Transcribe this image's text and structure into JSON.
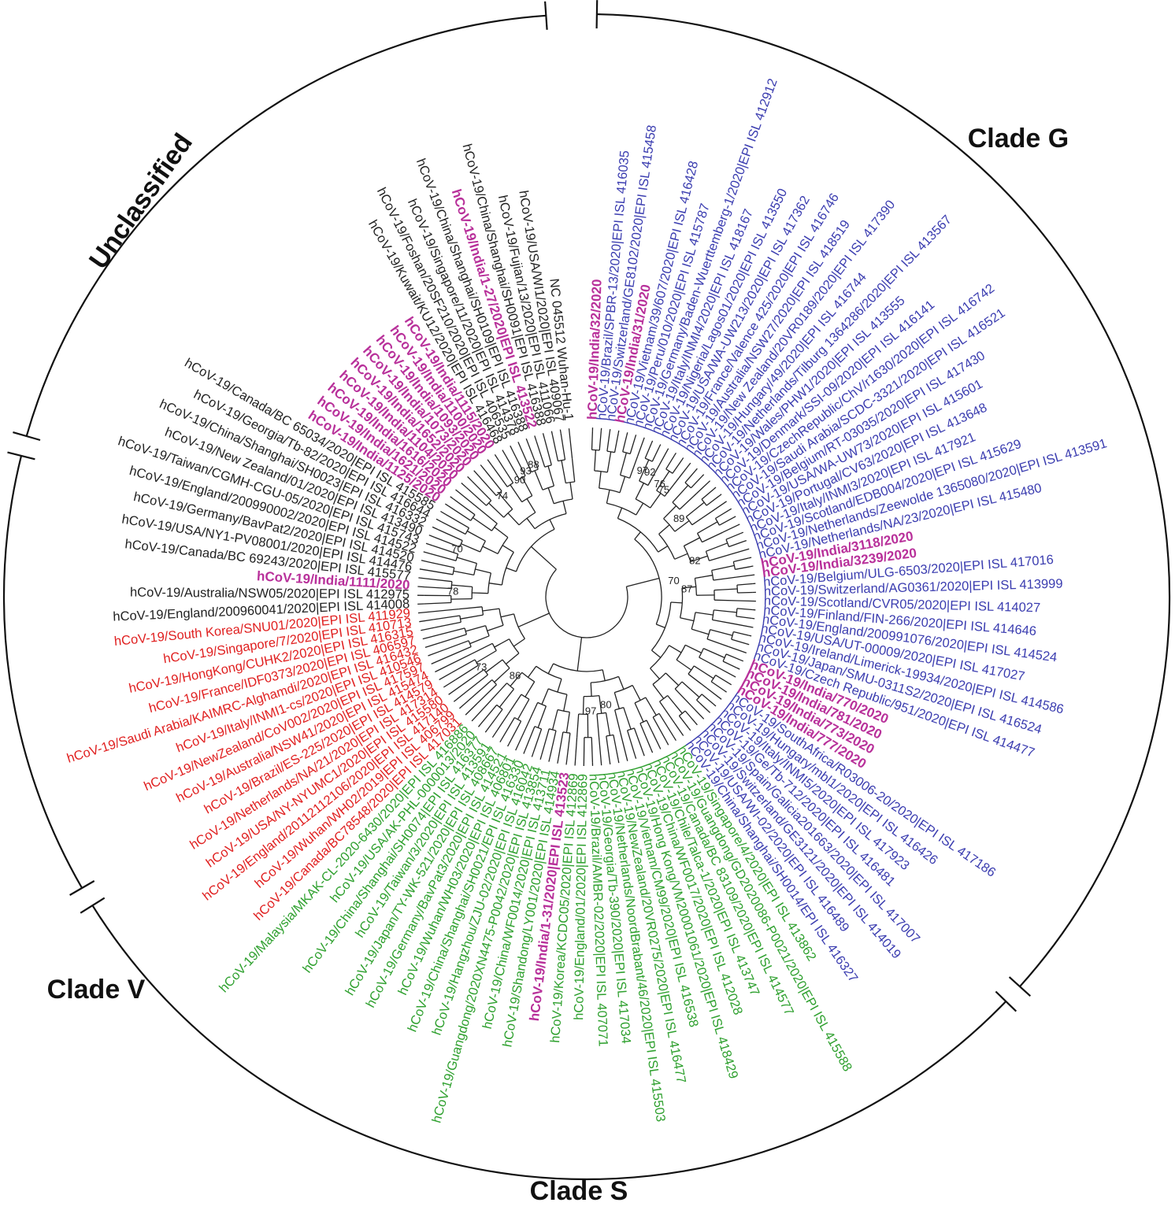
{
  "clades": [
    {
      "label": "Unclassified",
      "color": "#222222"
    },
    {
      "label": "Clade G",
      "color": "#3b3db0"
    },
    {
      "label": "Clade S",
      "color": "#2ea02e"
    },
    {
      "label": "Clade V",
      "color": "#e02020"
    }
  ],
  "india_color": "#b8309a",
  "bootstrap_values": [
    "97",
    "92",
    "76",
    "75",
    "89",
    "82",
    "70",
    "87",
    "80",
    "97",
    "86",
    "73",
    "78",
    "70",
    "74",
    "90",
    "93",
    "88"
  ],
  "leaves": [
    {
      "label": "hCoV-19/India/32/2020",
      "group": "india"
    },
    {
      "label": "hCoV-19/Brazil/SPBR-13/2020|EPI ISL 416035",
      "group": "G"
    },
    {
      "label": "hCoV-19/Switzerland/GE8102/2020|EPI ISL 415458",
      "group": "G"
    },
    {
      "label": "hCoV-19/India/31/2020",
      "group": "india"
    },
    {
      "label": "hCoV-19/Vietnam/39/607/2020|EPI ISL 416428",
      "group": "G"
    },
    {
      "label": "hCoV-19/Peru/010/2020|EPI ISL 415787",
      "group": "G"
    },
    {
      "label": "hCoV-19/Germany/Baden-Wuerttemberg-1/2020|EPI ISL 412912",
      "group": "G"
    },
    {
      "label": "hCoV-19/Italy/INMI4/2020|EPI ISL 418167",
      "group": "G"
    },
    {
      "label": "hCoV-19/Nigeria/Lagos01/2020|EPI ISL 413550",
      "group": "G"
    },
    {
      "label": "hCoV-19/USA/WA-UW213/2020|EPI ISL 417362",
      "group": "G"
    },
    {
      "label": "hCoV-19/France/Valence 425/2020|EPI ISL 416746",
      "group": "G"
    },
    {
      "label": "hCoV-19/Australia/NSW27/2020|EPI ISL 418519",
      "group": "G"
    },
    {
      "label": "hCoV-19/New Zealand/20VR0189/2020|EPI ISL 417390",
      "group": "G"
    },
    {
      "label": "hCoV-19/Hungary/49/2020|EPI ISL 416744",
      "group": "G"
    },
    {
      "label": "hCoV-19/Netherlands/Tilburg 1364286/2020|EPI ISL 413567",
      "group": "G"
    },
    {
      "label": "hCoV-19/Wales/PHW1/2020|EPI ISL 413555",
      "group": "G"
    },
    {
      "label": "hCoV-19/Denmark/SSI-09/2020|EPI ISL 416141",
      "group": "G"
    },
    {
      "label": "hCoV-19/CzechRepublic/ChV/r1630/2020|EPI ISL 416742",
      "group": "G"
    },
    {
      "label": "hCoV-19/Saudi Arabia/SCDC-3321/2020|EPI ISL 416521",
      "group": "G"
    },
    {
      "label": "hCoV-19/Belgium/RT-03035/2020|EPI ISL 417430",
      "group": "G"
    },
    {
      "label": "hCoV-19/USA/WA-UW73/2020|EPI ISL 415601",
      "group": "G"
    },
    {
      "label": "hCoV-19/Portugal/CV63/2020|EPI ISL 413648",
      "group": "G"
    },
    {
      "label": "hCoV-19/Italy/INMI3/2020|EPI ISL 417921",
      "group": "G"
    },
    {
      "label": "hCoV-19/Scotland/EDB004/2020|EPI ISL 415629",
      "group": "G"
    },
    {
      "label": "hCoV-19/Netherlands/Zeewolde 1365080/2020|EPI ISL 413591",
      "group": "G"
    },
    {
      "label": "hCoV-19/Netherlands/NA/23/2020|EPI ISL 415480",
      "group": "G"
    },
    {
      "label": "hCoV-19/India/3118/2020",
      "group": "india"
    },
    {
      "label": "hCoV-19/India/3239/2020",
      "group": "india"
    },
    {
      "label": "hCoV-19/Belgium/ULG-6503/2020|EPI ISL 417016",
      "group": "G"
    },
    {
      "label": "hCoV-19/Switzerland/AG0361/2020|EPI ISL 413999",
      "group": "G"
    },
    {
      "label": "hCoV-19/Scotland/CVR05/2020|EPI ISL 414027",
      "group": "G"
    },
    {
      "label": "hCoV-19/Finland/FIN-266/2020|EPI ISL 414646",
      "group": "G"
    },
    {
      "label": "hCoV-19/England/200991076/2020|EPI ISL 414524",
      "group": "G"
    },
    {
      "label": "hCoV-19/USA/UT-00009/2020|EPI ISL 417027",
      "group": "G"
    },
    {
      "label": "hCoV-19/Ireland/Limerick-19934/2020|EPI ISL 414586",
      "group": "G"
    },
    {
      "label": "hCoV-19/Japan/SMU-0311S2/2020|EPI ISL 416524",
      "group": "G"
    },
    {
      "label": "hCoV-19/Czech Republic/951/2020|EPI ISL 414477",
      "group": "G"
    },
    {
      "label": "hCoV-19/India/770/2020",
      "group": "india"
    },
    {
      "label": "hCoV-19/India/781/2020",
      "group": "india"
    },
    {
      "label": "hCoV-19/India/773/2020",
      "group": "india"
    },
    {
      "label": "hCoV-19/India/777/2020",
      "group": "india"
    },
    {
      "label": "hCoV-19/SouthAfrica/R03006-20/2020|EPI ISL 417186",
      "group": "G"
    },
    {
      "label": "hCoV-19/Hungary/mbl1/2020|EPI ISL 416426",
      "group": "G"
    },
    {
      "label": "hCoV-19/Italy/INMI5/2020|EPI ISL 417923",
      "group": "G"
    },
    {
      "label": "hCoV-19/Ge/Tb-712/2020|EPI ISL 416481",
      "group": "G"
    },
    {
      "label": "hCoV-19/Spain/Galicia201663/2020|EPI ISL 417007",
      "group": "G"
    },
    {
      "label": "hCoV-19/Switzerland/GE3121/2020|EPI ISL 414019",
      "group": "G"
    },
    {
      "label": "hCoV-19/USA/WI-02/2020|EPI ISL 416489",
      "group": "G"
    },
    {
      "label": "hCoV-19/China/Shanghai/SH0014/EPI ISL 416327",
      "group": "G"
    },
    {
      "label": "hCoV-19/Singapore/4/2020|EPI ISL 413862",
      "group": "S"
    },
    {
      "label": "hCoV-19/Guangdong/GD2020086-P0021/2020|EPI ISL 415588",
      "group": "S"
    },
    {
      "label": "hCoV-19/Canada/BC 83109/2020|EPI ISL 414577",
      "group": "S"
    },
    {
      "label": "hCoV-19/Chile/Talca-1/2020|EPI ISL 413747",
      "group": "S"
    },
    {
      "label": "hCoV-19/China/WF0017/2020|EPI ISL 412028",
      "group": "S"
    },
    {
      "label": "hCoV-19/Hong Kong/VM20001061/2020|EPI ISL 418429",
      "group": "S"
    },
    {
      "label": "hCoV-19/Vietnam/CM99/2020|EPI ISL 416538",
      "group": "S"
    },
    {
      "label": "hCoV-19/NewZealand/20VR0275/2020|EPI ISL 416477",
      "group": "S"
    },
    {
      "label": "hCoV-19/Netherlands/NoordBrabant/46/2020|EPI ISL 415503",
      "group": "S"
    },
    {
      "label": "hCoV-19/Georgia/Tb-390/2020|EPI ISL 417034",
      "group": "S"
    },
    {
      "label": "hCoV-19/Brazil/AMBR-02/2020|EPI ISL 407071",
      "group": "S"
    },
    {
      "label": "hCoV-19/England/01/2020|EPI ISL 412869",
      "group": "S"
    },
    {
      "label": "hCoV-19/Korea/KCDC05/2020|EPI ISL 412869",
      "group": "S"
    },
    {
      "label": "hCoV-19/India/1-31/2020|EPI ISL 413523",
      "group": "india"
    },
    {
      "label": "hCoV-19/Shandong/LY001/2020|EPI ISL 414934",
      "group": "S"
    },
    {
      "label": "hCoV-19/China/WF0014/2020|EPI ISL 413711",
      "group": "S"
    },
    {
      "label": "hCoV-19/Guangdong/2020XN4475-P0042/2020|EPI ISL 413854",
      "group": "S"
    },
    {
      "label": "hCoV-19/Hangzhou/ZJU-02/2020|EPI ISL 416042",
      "group": "S"
    },
    {
      "label": "hCoV-19/China/Shanghai/SH0021/EPI ISL 416330",
      "group": "S"
    },
    {
      "label": "hCoV-19/Wuhan/WH03/2020|EPI ISL 406801",
      "group": "S"
    },
    {
      "label": "hCoV-19/Germany/BavPat3/2020|EPI ISL 414521",
      "group": "S"
    },
    {
      "label": "hCoV-19/Japan/TY-WK-521/2020|EPI ISL 408667",
      "group": "S"
    },
    {
      "label": "hCoV-19/Taiwan/3/2020|EPI ISL 413591",
      "group": "S"
    },
    {
      "label": "hCoV-19/China/Shanghai/SH0074|EPI ISL 416377",
      "group": "S"
    },
    {
      "label": "hCoV-19/USA/AK-PHL-0000013/2020",
      "group": "S"
    },
    {
      "label": "hCoV-19/Malaysia/MKAK-CL-2020-6430/2020|EPI ISL 416886",
      "group": "S"
    },
    {
      "label": "hCoV-19/Canada/BC78548/2020|EPI ISL 417031",
      "group": "V"
    },
    {
      "label": "hCoV-19/Wuhan/WH02/2019|EPI ISL 406799",
      "group": "V"
    },
    {
      "label": "hCoV-19/England/20112112106/2020|EPI ISL 417140",
      "group": "V"
    },
    {
      "label": "hCoV-19/USA/NY-NYUMC1/2020|EPI ISL 415580",
      "group": "V"
    },
    {
      "label": "hCoV-19/Netherlands/NA/21/2020|EPI ISL 417314",
      "group": "V"
    },
    {
      "label": "hCoV-19/Brazil/ES-225/2020|EPI ISL 414579",
      "group": "V"
    },
    {
      "label": "hCoV-19/Australia/NSW41/2020|EPI ISL 415474",
      "group": "V"
    },
    {
      "label": "hCoV-19/NewZealand/CoV002/2020|EPI ISL 417597",
      "group": "V"
    },
    {
      "label": "hCoV-19/Italy/INMI1-cs/2020|EPI ISL 410546",
      "group": "V"
    },
    {
      "label": "hCoV-19/Saudi Arabia/KAIMRC-Alghamdi/2020|EPI ISL 416432",
      "group": "V"
    },
    {
      "label": "hCoV-19/France/IDF0373/2020|EPI ISL 406597",
      "group": "V"
    },
    {
      "label": "hCoV-19/HongKong/CUHK2/2020|EPI ISL 416315",
      "group": "V"
    },
    {
      "label": "hCoV-19/Singapore/7/2020|EPI ISL 410713",
      "group": "V"
    },
    {
      "label": "hCoV-19/South Korea/SNU01/2020|EPI ISL 411929",
      "group": "V"
    },
    {
      "label": "hCoV-19/England/200960041/2020|EPI ISL 414008",
      "group": "U"
    },
    {
      "label": "hCoV-19/Australia/NSW05/2020|EPI ISL 412975",
      "group": "U"
    },
    {
      "label": "hCoV-19/India/1111/2020",
      "group": "india"
    },
    {
      "label": "hCoV-19/Canada/BC 69243/2020|EPI ISL 415577",
      "group": "U"
    },
    {
      "label": "hCoV-19/USA/NY1-PV08001/2020|EPI ISL 414476",
      "group": "U"
    },
    {
      "label": "hCoV-19/Germany/BavPat2/2020|EPI ISL 414520",
      "group": "U"
    },
    {
      "label": "hCoV-19/England/200990002/2020|EPI ISL 414522",
      "group": "U"
    },
    {
      "label": "hCoV-19/Taiwan/CGMH-CGU-05/2020|EPI ISL 415743",
      "group": "U"
    },
    {
      "label": "hCoV-19/New Zealand/01/2020|EPI ISL 413490",
      "group": "U"
    },
    {
      "label": "hCoV-19/China/Shanghai/SH0023|EPI ISL 416332",
      "group": "U"
    },
    {
      "label": "hCoV-19/Georgia/Tb-82/2020|EPI ISL 416644",
      "group": "U"
    },
    {
      "label": "hCoV-19/Canada/BC 65034/2020|EPI ISL 415585",
      "group": "U"
    },
    {
      "label": "hCoV-19/India/1125/2020",
      "group": "india"
    },
    {
      "label": "hCoV-19/India/1621/2020",
      "group": "india"
    },
    {
      "label": "hCoV-19/India/1616/2020",
      "group": "india"
    },
    {
      "label": "hCoV-19/India/1104/2020",
      "group": "india"
    },
    {
      "label": "hCoV-19/India/1652/2020",
      "group": "india"
    },
    {
      "label": "hCoV-19/India/1073/2020",
      "group": "india"
    },
    {
      "label": "hCoV-19/India/1093/2020",
      "group": "india"
    },
    {
      "label": "hCoV-19/India/1100/2020",
      "group": "india"
    },
    {
      "label": "hCoV-19/India/1115/2020",
      "group": "india"
    },
    {
      "label": "hCoV-19/Kuwait/KU12/2020|EPI ISL 416468",
      "group": "U"
    },
    {
      "label": "hCoV-19/Foshan/20SF210/2020|EPI ISL 406535",
      "group": "U"
    },
    {
      "label": "hCoV-19/Singapore/11/2020|EPI ISL 414378",
      "group": "U"
    },
    {
      "label": "hCoV-19/China/Shanghai/SH0109|EPI ISL 416388",
      "group": "U"
    },
    {
      "label": "hCoV-19/India/1-27/2020|EPI ISL 413522",
      "group": "india"
    },
    {
      "label": "hCoV-19/China/Shanghai/SH0091|EPI ISL 416388",
      "group": "U"
    },
    {
      "label": "hCoV-19/Fujian/13/2020|EPI ISL 411066",
      "group": "U"
    },
    {
      "label": "hCoV-19/USA/WI1/2020|EPI ISL 409067",
      "group": "U"
    },
    {
      "label": "NC 045512 Wuhan-Hu-1",
      "group": "U"
    }
  ]
}
